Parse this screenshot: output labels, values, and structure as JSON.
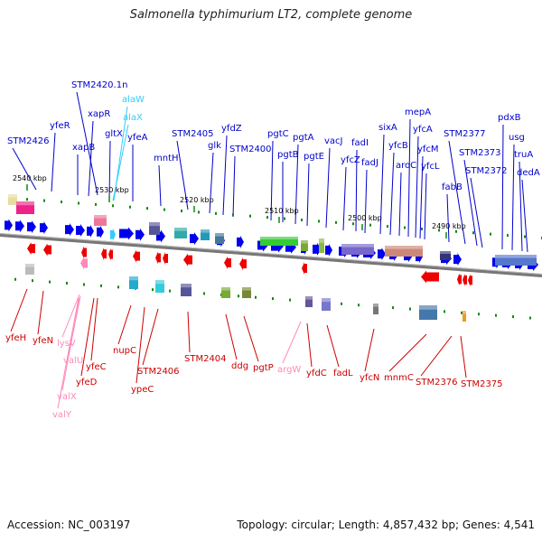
{
  "header": {
    "title": "Salmonella typhimurium LT2, complete genome"
  },
  "footer": {
    "accession": "Accession: NC_003197",
    "summary": "Topology: circular; Length: 4,857,432 bp; Genes: 4,541"
  },
  "colors": {
    "forward_label": "#0000cc",
    "forward_arrow": "#0000ee",
    "reverse_label": "#cc0000",
    "reverse_arrow": "#ee0000",
    "rna_forward": "#33ccff",
    "rna_reverse": "#ff88bb",
    "tick": "#118811",
    "backbone": "#777777"
  },
  "scale_ticks": [
    "2540 kbp",
    "2530 kbp",
    "2520 kbp",
    "2510 kbp",
    "2500 kbp",
    "2490 kbp"
  ],
  "forward_genes": [
    "STM2426",
    "yfeR",
    "xapB",
    "STM2420.1n",
    "xapR",
    "gltX",
    "alaW",
    "alaX",
    "yfeA",
    "mntH",
    "STM2405",
    "glk",
    "yfdZ",
    "STM2400",
    "pgtC",
    "pgtB",
    "pgtA",
    "pgtE",
    "vacJ",
    "yfcZ",
    "fadI",
    "fadJ",
    "sixA",
    "yfcB",
    "aroC",
    "mepA",
    "yfcA",
    "yfcM",
    "yfcL",
    "fabB",
    "STM2377",
    "STM2373",
    "STM2372",
    "pdxB",
    "usg",
    "truA",
    "dedA"
  ],
  "reverse_genes": [
    "yfeH",
    "yfeN",
    "lysV",
    "valU",
    "yfeC",
    "yfeD",
    "valX",
    "valY",
    "nupC",
    "ypeC",
    "STM2406",
    "STM2404",
    "ddg",
    "pgtP",
    "argW",
    "yfdC",
    "fadL",
    "yfcN",
    "mnmC",
    "STM2376",
    "STM2375"
  ]
}
